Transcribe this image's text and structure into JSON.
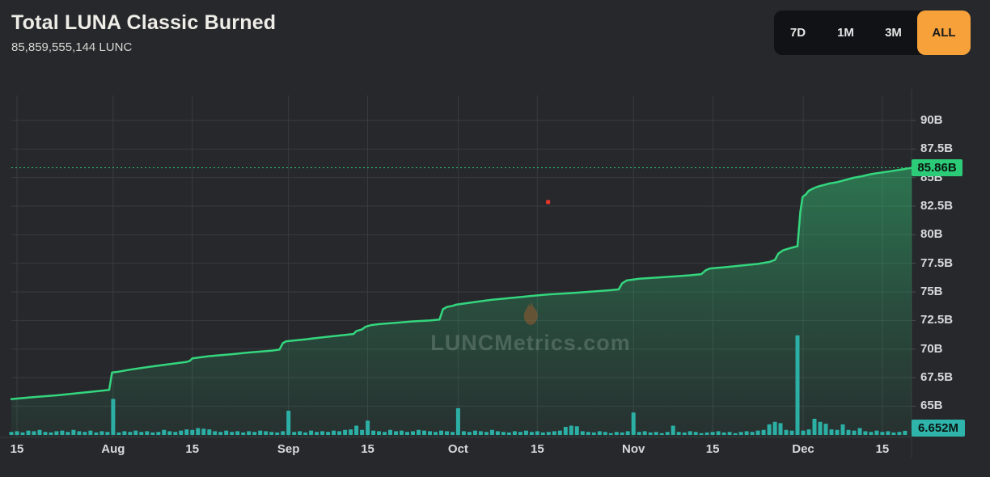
{
  "header": {
    "title": "Total LUNA Classic Burned",
    "subtitle": "85,859,555,144 LUNC"
  },
  "range_buttons": [
    {
      "label": "7D",
      "active": false
    },
    {
      "label": "1M",
      "active": false
    },
    {
      "label": "3M",
      "active": false
    },
    {
      "label": "ALL",
      "active": true
    }
  ],
  "watermark": {
    "text": "LUNCMetrics.com",
    "icon": "flame-icon"
  },
  "colors": {
    "background": "#26282c",
    "grid": "#383b40",
    "axis_border": "#34373b",
    "line_green": "#34d67e",
    "label_green_bg": "#2bcb78",
    "volume_teal": "#2cafa5",
    "volume_label_bg": "#2eb4aa",
    "orange": "#f7a13b",
    "red_marker": "#e8352b",
    "axis_text": "#d8d9da",
    "title_text": "#efede7",
    "subtitle_text": "#d6d5d1",
    "button_bg": "#101216",
    "button_text": "#e6e6e6",
    "button_active_text": "#17181c",
    "watermark_text": "rgba(174,188,180,0.28)",
    "flame": "rgba(160,92,46,0.5)"
  },
  "chart_data": {
    "type": "area",
    "title": "Total LUNA Classic Burned",
    "unit": "LUNC (billions)",
    "grid": true,
    "legend": false,
    "last_value": 85.86,
    "last_value_label": "85.86B",
    "x_axis": {
      "description": "days since Jul 14, span Jul 14 - Dec 20",
      "ticks": [
        {
          "d": 1,
          "label": "15"
        },
        {
          "d": 18,
          "label": "Aug"
        },
        {
          "d": 32,
          "label": "15"
        },
        {
          "d": 49,
          "label": "Sep"
        },
        {
          "d": 63,
          "label": "15"
        },
        {
          "d": 79,
          "label": "Oct"
        },
        {
          "d": 93,
          "label": "15"
        },
        {
          "d": 110,
          "label": "Nov"
        },
        {
          "d": 124,
          "label": "15"
        },
        {
          "d": 140,
          "label": "Dec"
        },
        {
          "d": 154,
          "label": "15"
        }
      ]
    },
    "y_axis": {
      "min_visible": 62.3,
      "max_visible": 92.7,
      "ticks": [
        {
          "v": 90,
          "label": "90B"
        },
        {
          "v": 87.5,
          "label": "87.5B"
        },
        {
          "v": 85,
          "label": "85B"
        },
        {
          "v": 82.5,
          "label": "82.5B"
        },
        {
          "v": 80,
          "label": "80B"
        },
        {
          "v": 77.5,
          "label": "77.5B"
        },
        {
          "v": 75,
          "label": "75B"
        },
        {
          "v": 72.5,
          "label": "72.5B"
        },
        {
          "v": 70,
          "label": "70B"
        },
        {
          "v": 67.5,
          "label": "67.5B"
        },
        {
          "v": 65,
          "label": "65B"
        }
      ]
    },
    "series": [
      [
        0,
        65.62
      ],
      [
        4,
        65.8
      ],
      [
        8,
        65.95
      ],
      [
        12,
        66.15
      ],
      [
        16,
        66.35
      ],
      [
        17.3,
        66.42
      ],
      [
        17.8,
        67.95
      ],
      [
        19,
        68.02
      ],
      [
        21,
        68.2
      ],
      [
        24,
        68.42
      ],
      [
        28,
        68.68
      ],
      [
        31,
        68.88
      ],
      [
        31.5,
        68.95
      ],
      [
        32,
        69.18
      ],
      [
        35,
        69.38
      ],
      [
        39,
        69.55
      ],
      [
        42,
        69.7
      ],
      [
        46,
        69.85
      ],
      [
        47.4,
        69.95
      ],
      [
        48,
        70.52
      ],
      [
        48.6,
        70.68
      ],
      [
        52,
        70.85
      ],
      [
        55,
        71.02
      ],
      [
        58,
        71.18
      ],
      [
        60.5,
        71.32
      ],
      [
        61,
        71.58
      ],
      [
        62,
        71.72
      ],
      [
        62.6,
        71.95
      ],
      [
        63.5,
        72.08
      ],
      [
        65,
        72.18
      ],
      [
        68,
        72.3
      ],
      [
        71,
        72.42
      ],
      [
        74,
        72.5
      ],
      [
        75.7,
        72.58
      ],
      [
        76.3,
        73.48
      ],
      [
        77,
        73.68
      ],
      [
        78,
        73.78
      ],
      [
        78.6,
        73.88
      ],
      [
        81,
        74.05
      ],
      [
        84,
        74.25
      ],
      [
        85,
        74.32
      ],
      [
        88,
        74.45
      ],
      [
        92,
        74.65
      ],
      [
        95,
        74.78
      ],
      [
        99,
        74.9
      ],
      [
        102,
        75.0
      ],
      [
        106,
        75.15
      ],
      [
        107.4,
        75.22
      ],
      [
        108,
        75.75
      ],
      [
        108.8,
        76.0
      ],
      [
        111,
        76.15
      ],
      [
        114,
        76.25
      ],
      [
        117,
        76.35
      ],
      [
        120,
        76.45
      ],
      [
        122,
        76.55
      ],
      [
        122.8,
        76.9
      ],
      [
        123.5,
        77.05
      ],
      [
        126,
        77.15
      ],
      [
        129,
        77.3
      ],
      [
        132,
        77.45
      ],
      [
        134,
        77.62
      ],
      [
        135,
        77.8
      ],
      [
        135.6,
        78.35
      ],
      [
        136.5,
        78.65
      ],
      [
        137.5,
        78.8
      ],
      [
        139,
        79.0
      ],
      [
        139.5,
        82.0
      ],
      [
        139.9,
        83.3
      ],
      [
        140.5,
        83.55
      ],
      [
        141,
        83.85
      ],
      [
        142,
        84.1
      ],
      [
        142.5,
        84.2
      ],
      [
        143.6,
        84.35
      ],
      [
        144.6,
        84.48
      ],
      [
        146,
        84.6
      ],
      [
        147.5,
        84.8
      ],
      [
        149,
        85.0
      ],
      [
        150.4,
        85.12
      ],
      [
        152,
        85.3
      ],
      [
        153.5,
        85.42
      ],
      [
        155,
        85.52
      ],
      [
        156,
        85.6
      ],
      [
        157.5,
        85.72
      ],
      [
        158.5,
        85.8
      ],
      [
        159.2,
        85.86
      ]
    ],
    "marker": {
      "d": 94.9,
      "v": 82.86
    },
    "volume": {
      "unit": "M",
      "last_label": "6.652M",
      "values": [
        5,
        6,
        4,
        7,
        6,
        8,
        5,
        4,
        6,
        7,
        5,
        8,
        6,
        5,
        7,
        4,
        6,
        5,
        58,
        4,
        6,
        5,
        7,
        5,
        6,
        4,
        5,
        8,
        6,
        5,
        7,
        9,
        8,
        11,
        10,
        9,
        6,
        5,
        7,
        5,
        6,
        4,
        6,
        5,
        7,
        6,
        5,
        4,
        6,
        39,
        5,
        6,
        4,
        7,
        5,
        6,
        5,
        7,
        6,
        8,
        9,
        15,
        8,
        23,
        7,
        6,
        5,
        8,
        6,
        7,
        5,
        6,
        8,
        7,
        6,
        5,
        7,
        6,
        5,
        43,
        6,
        5,
        7,
        6,
        5,
        8,
        6,
        5,
        4,
        6,
        5,
        7,
        5,
        6,
        4,
        5,
        6,
        7,
        13,
        15,
        14,
        6,
        5,
        4,
        6,
        5,
        3,
        5,
        4,
        6,
        36,
        5,
        6,
        4,
        5,
        3,
        5,
        15,
        5,
        4,
        6,
        5,
        3,
        4,
        5,
        6,
        4,
        5,
        3,
        5,
        6,
        5,
        7,
        8,
        17,
        21,
        19,
        8,
        7,
        160,
        7,
        9,
        26,
        21,
        18,
        9,
        8,
        17,
        8,
        7,
        11,
        6,
        5,
        7,
        5,
        6,
        4,
        5,
        6.652
      ]
    }
  }
}
